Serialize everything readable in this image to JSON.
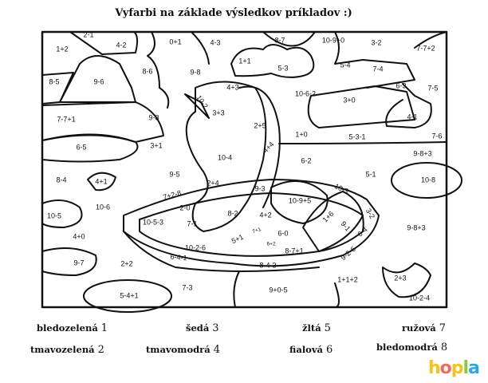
{
  "title": "Vyfarbi na základe výsledkov príkladov :)",
  "labels": [
    "1+2",
    "2-1",
    "4-2",
    "0+1",
    "4-3",
    "8-7",
    "10-9+0",
    "3-2",
    "7-7+2",
    "1+1",
    "5-3",
    "5-4",
    "7-4",
    "8-6",
    "9-8",
    "8-5",
    "9-6",
    "6-3",
    "7-5",
    "4+3",
    "10-6-2",
    "3+0",
    "10-2",
    "3+3",
    "4-1",
    "7-7+1",
    "9-8",
    "2+5",
    "1+0",
    "5-3-1",
    "7-6",
    "6-5",
    "3+1",
    "4+4",
    "10-4",
    "9-8+3",
    "6-2",
    "9-5",
    "5-1",
    "8-4",
    "4+1",
    "10-8",
    "2+4",
    "10-6",
    "9-3",
    "10-3",
    "7+2-8",
    "10-9+5",
    "2-0",
    "3-2",
    "10-5",
    "4+2",
    "1+6",
    "8-2",
    "10-5-3",
    "7-1",
    "9-8+3",
    "9-1",
    "6-0",
    "6-4",
    "7+1",
    "4+0",
    "5+1",
    "6+2",
    "10-2-6",
    "8-7+1",
    "9-2-6",
    "6-4-1",
    "9-7",
    "2+2",
    "8-4-3",
    "1+1+2",
    "2+3",
    "7-3",
    "9+0-5",
    "5-4+1",
    "10-2-4"
  ],
  "legend": [
    {
      "color": "bledozelená",
      "number": "1"
    },
    {
      "color": "tmavozelená",
      "number": "2"
    },
    {
      "color": "šedá",
      "number": "3"
    },
    {
      "color": "tmavomodrá",
      "number": "4"
    },
    {
      "color": "žltá",
      "number": "5"
    },
    {
      "color": "fialová",
      "number": "6"
    },
    {
      "color": "ružová",
      "number": "7"
    },
    {
      "color": "bledomodrá",
      "number": "8"
    }
  ],
  "logo": {
    "text": "hopla",
    "letters": [
      "h",
      "o",
      "p",
      "l",
      "a"
    ],
    "colors": [
      "#f7c21b",
      "#f26b5b",
      "#f7c21b",
      "#8dc63f",
      "#2aa8e0"
    ]
  }
}
